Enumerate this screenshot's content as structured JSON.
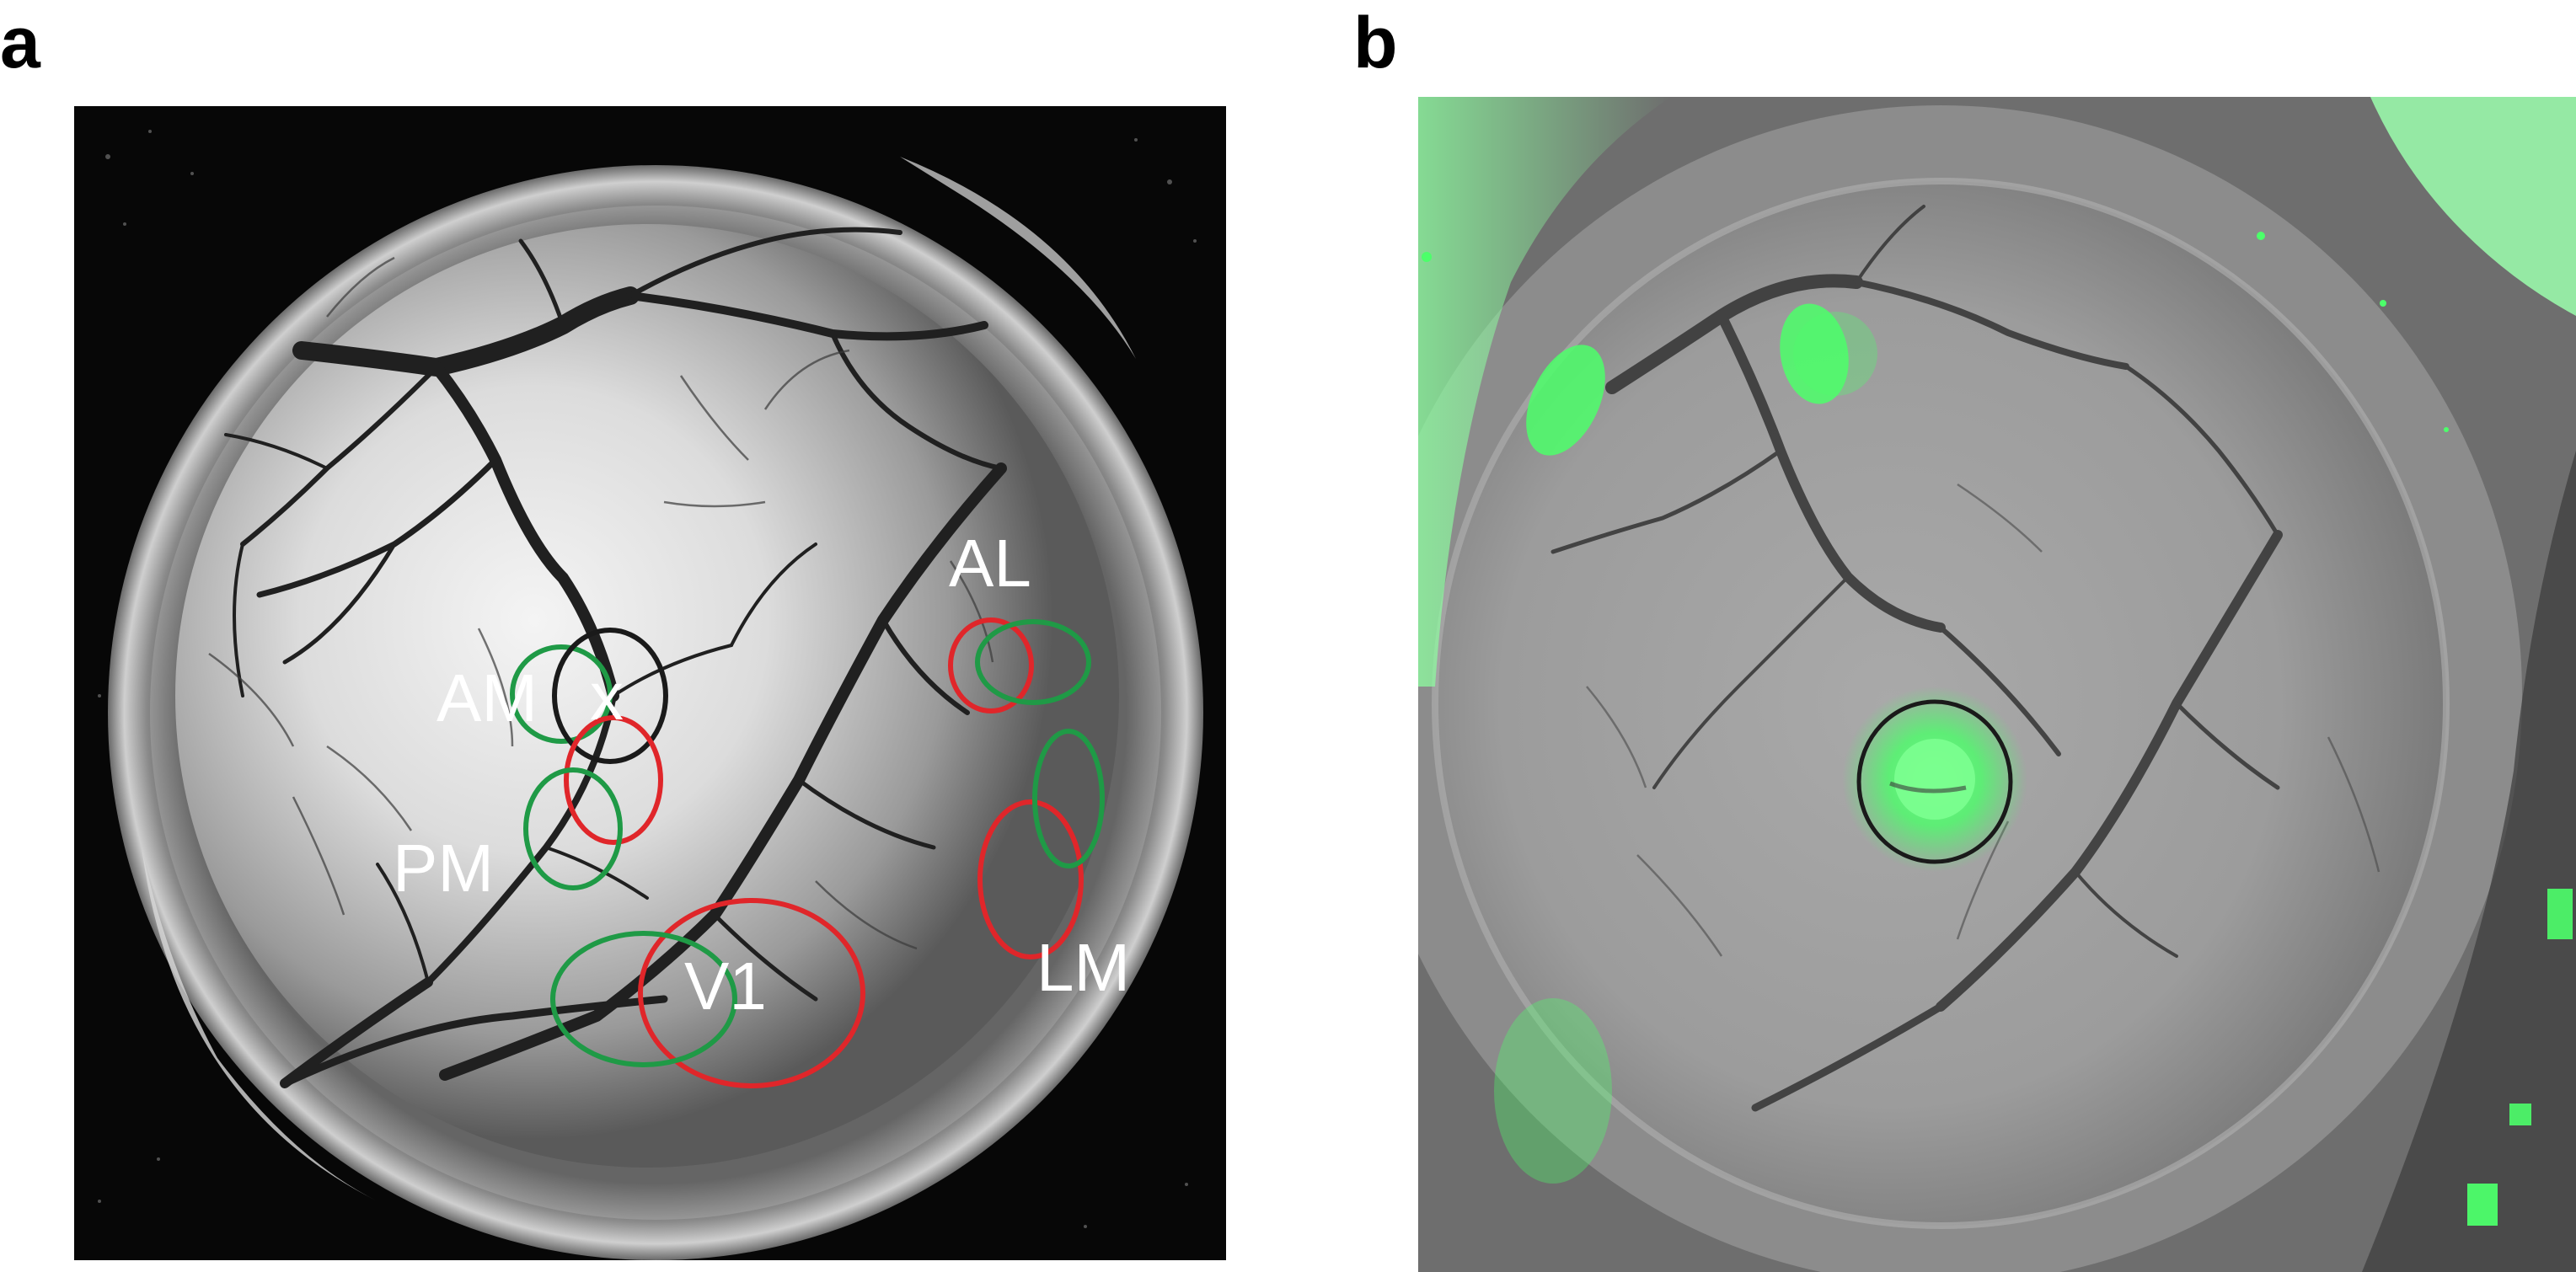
{
  "figure": {
    "panel_a": {
      "letter": "a",
      "area_labels": {
        "am": "AM",
        "x_mark": "x",
        "al": "AL",
        "pm": "PM",
        "v1": "V1",
        "lm": "LM"
      },
      "outline_colors": {
        "red": "#e0262a",
        "green": "#1f9a46",
        "black": "#1a1a1a"
      }
    },
    "panel_b": {
      "letter": "b",
      "fluorescence_color": "#4cff6a",
      "injection_circle_color": "#1a1a1a"
    }
  }
}
